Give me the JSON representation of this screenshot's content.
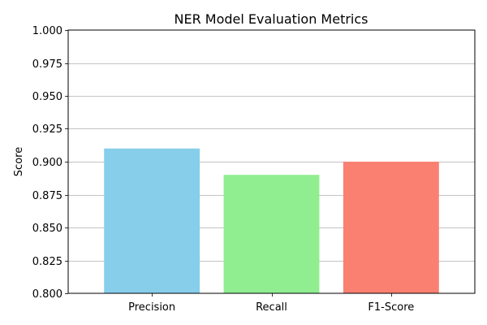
{
  "chart_data": {
    "type": "bar",
    "title": "NER Model Evaluation Metrics",
    "xlabel": "",
    "ylabel": "Score",
    "categories": [
      "Precision",
      "Recall",
      "F1-Score"
    ],
    "values": [
      0.91,
      0.89,
      0.9
    ],
    "colors": [
      "#87ceeb",
      "#90ee90",
      "#fa8072"
    ],
    "ylim": [
      0.8,
      1.0
    ],
    "yticks": [
      0.8,
      0.825,
      0.85,
      0.875,
      0.9,
      0.925,
      0.95,
      0.975,
      1.0
    ],
    "ytick_labels": [
      "0.800",
      "0.825",
      "0.850",
      "0.875",
      "0.900",
      "0.925",
      "0.950",
      "0.975",
      "1.000"
    ],
    "grid": "y",
    "grid_color": "#b0b0b0"
  }
}
